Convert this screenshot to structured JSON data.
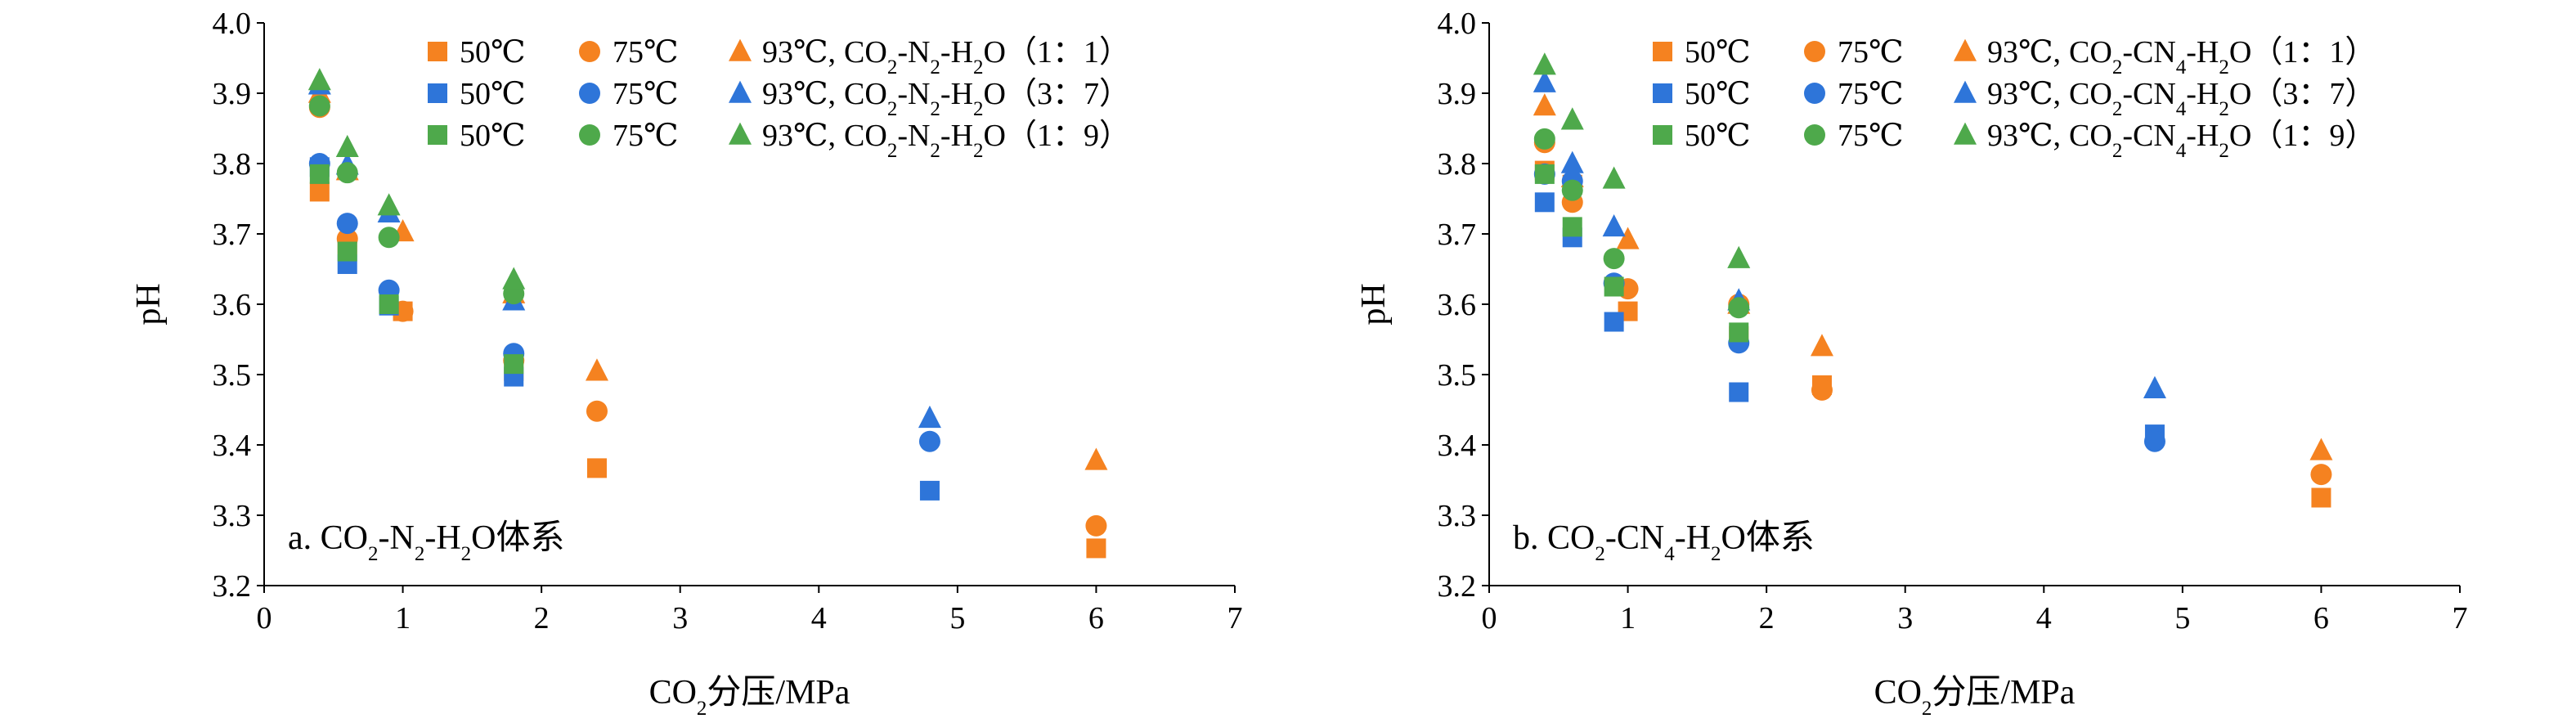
{
  "colors": {
    "c50": "#f58220",
    "c93": "#4ea94b",
    "blue": "#2e75d9",
    "axis": "#000000"
  },
  "chart_data": [
    {
      "type": "scatter",
      "annotation": "a. CO2-N2-H2O体系",
      "annotation_parts": {
        "pre": "a. CO",
        "s1": "2",
        "m1": "-N",
        "s2": "2",
        "m2": "-H",
        "s3": "2",
        "post": "O体系"
      },
      "xlabel": "CO2分压/MPa",
      "xlabel_parts": {
        "pre": "CO",
        "sub": "2",
        "post": "分压/MPa"
      },
      "ylabel": "pH",
      "xlim": [
        0,
        7
      ],
      "ylim": [
        3.2,
        4.0
      ],
      "xticks": [
        "0",
        "1",
        "2",
        "3",
        "4",
        "5",
        "6",
        "7"
      ],
      "yticks": [
        "3.2",
        "3.3",
        "3.4",
        "3.5",
        "3.6",
        "3.7",
        "3.8",
        "3.9",
        "4.0"
      ],
      "legend_position": "top-right",
      "legend_rows": [
        {
          "ratio": "（1：1）",
          "label_50": "50℃",
          "label_75": "75℃",
          "label_93": "93℃,",
          "gas_pre": "CO",
          "gas_sub1": "2",
          "gas_mid1": "-N",
          "gas_sub2": "2",
          "gas_mid2": "-H",
          "gas_sub3": "2",
          "gas_post": "O"
        },
        {
          "ratio": "（3：7）",
          "label_50": "50℃",
          "label_75": "75℃",
          "label_93": "93℃,",
          "gas_pre": "CO",
          "gas_sub1": "2",
          "gas_mid1": "-N",
          "gas_sub2": "2",
          "gas_mid2": "-H",
          "gas_sub3": "2",
          "gas_post": "O"
        },
        {
          "ratio": "（1：9）",
          "label_50": "50℃",
          "label_75": "75℃",
          "label_93": "93℃,",
          "gas_pre": "CO",
          "gas_sub1": "2",
          "gas_mid1": "-N",
          "gas_sub2": "2",
          "gas_mid2": "-H",
          "gas_sub3": "2",
          "gas_post": "O"
        }
      ],
      "series": [
        {
          "name": "50℃ (1:1)",
          "marker": "square",
          "color": "#f58220",
          "points": [
            [
              0.4,
              3.76
            ],
            [
              0.6,
              3.685
            ],
            [
              1.0,
              3.59
            ],
            [
              1.8,
              3.505
            ],
            [
              2.4,
              3.367
            ],
            [
              6.0,
              3.253
            ]
          ]
        },
        {
          "name": "75℃ (1:1)",
          "marker": "circle",
          "color": "#f58220",
          "points": [
            [
              0.4,
              3.88
            ],
            [
              0.6,
              3.693
            ],
            [
              1.0,
              3.59
            ],
            [
              1.8,
              3.52
            ],
            [
              2.4,
              3.448
            ],
            [
              6.0,
              3.285
            ]
          ]
        },
        {
          "name": "93℃ (1:1)",
          "marker": "triangle",
          "color": "#f58220",
          "points": [
            [
              0.4,
              3.9
            ],
            [
              0.6,
              3.79
            ],
            [
              1.0,
              3.703
            ],
            [
              1.8,
              3.615
            ],
            [
              2.4,
              3.505
            ],
            [
              6.0,
              3.378
            ]
          ]
        },
        {
          "name": "50℃ (3:7)",
          "marker": "square",
          "color": "#2e75d9",
          "points": [
            [
              0.4,
              3.795
            ],
            [
              0.6,
              3.657
            ],
            [
              0.9,
              3.598
            ],
            [
              1.8,
              3.497
            ],
            [
              4.8,
              3.335
            ]
          ]
        },
        {
          "name": "75℃ (3:7)",
          "marker": "circle",
          "color": "#2e75d9",
          "points": [
            [
              0.4,
              3.8
            ],
            [
              0.6,
              3.715
            ],
            [
              0.9,
              3.62
            ],
            [
              1.8,
              3.53
            ],
            [
              4.8,
              3.405
            ]
          ]
        },
        {
          "name": "93℃ (3:7)",
          "marker": "triangle",
          "color": "#2e75d9",
          "points": [
            [
              0.4,
              3.912
            ],
            [
              0.6,
              3.798
            ],
            [
              0.9,
              3.73
            ],
            [
              1.8,
              3.605
            ],
            [
              4.8,
              3.438
            ]
          ]
        },
        {
          "name": "50℃ (1:9)",
          "marker": "square",
          "color": "#4ea94b",
          "points": [
            [
              0.4,
              3.785
            ],
            [
              0.6,
              3.675
            ],
            [
              0.9,
              3.6
            ],
            [
              1.8,
              3.515
            ]
          ]
        },
        {
          "name": "75℃ (1:9)",
          "marker": "circle",
          "color": "#4ea94b",
          "points": [
            [
              0.4,
              3.882
            ],
            [
              0.6,
              3.787
            ],
            [
              0.9,
              3.695
            ],
            [
              1.8,
              3.615
            ]
          ]
        },
        {
          "name": "93℃ (1:9)",
          "marker": "triangle",
          "color": "#4ea94b",
          "points": [
            [
              0.4,
              3.918
            ],
            [
              0.6,
              3.823
            ],
            [
              0.9,
              3.74
            ],
            [
              1.8,
              3.635
            ]
          ]
        }
      ]
    },
    {
      "type": "scatter",
      "annotation": "b. CO2-CN4-H2O体系",
      "annotation_parts": {
        "pre": "b. CO",
        "s1": "2",
        "m1": "-CN",
        "s2": "4",
        "m2": "-H",
        "s3": "2",
        "post": "O体系"
      },
      "xlabel": "CO2分压/MPa",
      "xlabel_parts": {
        "pre": "CO",
        "sub": "2",
        "post": "分压/MPa"
      },
      "ylabel": "pH",
      "xlim": [
        0,
        7
      ],
      "ylim": [
        3.2,
        4.0
      ],
      "xticks": [
        "0",
        "1",
        "2",
        "3",
        "4",
        "5",
        "6",
        "7"
      ],
      "yticks": [
        "3.2",
        "3.3",
        "3.4",
        "3.5",
        "3.6",
        "3.7",
        "3.8",
        "3.9",
        "4.0"
      ],
      "legend_position": "top-right",
      "legend_rows": [
        {
          "ratio": "（1：1）",
          "label_50": "50℃",
          "label_75": "75℃",
          "label_93": "93℃,",
          "gas_pre": "CO",
          "gas_sub1": "2",
          "gas_mid1": "-CN",
          "gas_sub2": "4",
          "gas_mid2": "-H",
          "gas_sub3": "2",
          "gas_post": "O"
        },
        {
          "ratio": "（3：7）",
          "label_50": "50℃",
          "label_75": "75℃",
          "label_93": "93℃,",
          "gas_pre": "CO",
          "gas_sub1": "2",
          "gas_mid1": "-CN",
          "gas_sub2": "4",
          "gas_mid2": "-H",
          "gas_sub3": "2",
          "gas_post": "O"
        },
        {
          "ratio": "（1：9）",
          "label_50": "50℃",
          "label_75": "75℃",
          "label_93": "93℃,",
          "gas_pre": "CO",
          "gas_sub1": "2",
          "gas_mid1": "-CN",
          "gas_sub2": "4",
          "gas_mid2": "-H",
          "gas_sub3": "2",
          "gas_post": "O"
        }
      ],
      "series": [
        {
          "name": "50℃ (1:1)",
          "marker": "square",
          "color": "#f58220",
          "points": [
            [
              0.4,
              3.79
            ],
            [
              0.6,
              3.77
            ],
            [
              1.0,
              3.59
            ],
            [
              1.8,
              3.555
            ],
            [
              2.4,
              3.485
            ],
            [
              6.0,
              3.325
            ]
          ]
        },
        {
          "name": "75℃ (1:1)",
          "marker": "circle",
          "color": "#f58220",
          "points": [
            [
              0.4,
              3.83
            ],
            [
              0.6,
              3.745
            ],
            [
              1.0,
              3.622
            ],
            [
              1.8,
              3.6
            ],
            [
              2.4,
              3.478
            ],
            [
              6.0,
              3.358
            ]
          ]
        },
        {
          "name": "93℃ (1:1)",
          "marker": "triangle",
          "color": "#f58220",
          "points": [
            [
              0.4,
              3.882
            ],
            [
              0.6,
              3.78
            ],
            [
              1.0,
              3.692
            ],
            [
              1.8,
              3.6
            ],
            [
              2.4,
              3.54
            ],
            [
              6.0,
              3.392
            ]
          ]
        },
        {
          "name": "50℃ (3:7)",
          "marker": "square",
          "color": "#2e75d9",
          "points": [
            [
              0.4,
              3.745
            ],
            [
              0.6,
              3.695
            ],
            [
              0.9,
              3.575
            ],
            [
              1.8,
              3.475
            ],
            [
              4.8,
              3.415
            ]
          ]
        },
        {
          "name": "75℃ (3:7)",
          "marker": "circle",
          "color": "#2e75d9",
          "points": [
            [
              0.4,
              3.785
            ],
            [
              0.6,
              3.775
            ],
            [
              0.9,
              3.63
            ],
            [
              1.8,
              3.545
            ],
            [
              4.8,
              3.405
            ]
          ]
        },
        {
          "name": "93℃ (3:7)",
          "marker": "triangle",
          "color": "#2e75d9",
          "points": [
            [
              0.4,
              3.915
            ],
            [
              0.6,
              3.8
            ],
            [
              0.9,
              3.71
            ],
            [
              1.8,
              3.605
            ],
            [
              4.8,
              3.48
            ]
          ]
        },
        {
          "name": "50℃ (1:9)",
          "marker": "square",
          "color": "#4ea94b",
          "points": [
            [
              0.4,
              3.785
            ],
            [
              0.6,
              3.71
            ],
            [
              0.9,
              3.625
            ],
            [
              1.8,
              3.56
            ]
          ]
        },
        {
          "name": "75℃ (1:9)",
          "marker": "circle",
          "color": "#4ea94b",
          "points": [
            [
              0.4,
              3.835
            ],
            [
              0.6,
              3.762
            ],
            [
              0.9,
              3.665
            ],
            [
              1.8,
              3.595
            ]
          ]
        },
        {
          "name": "93℃ (1:9)",
          "marker": "triangle",
          "color": "#4ea94b",
          "points": [
            [
              0.4,
              3.94
            ],
            [
              0.6,
              3.862
            ],
            [
              0.9,
              3.778
            ],
            [
              1.8,
              3.665
            ]
          ]
        }
      ]
    }
  ]
}
